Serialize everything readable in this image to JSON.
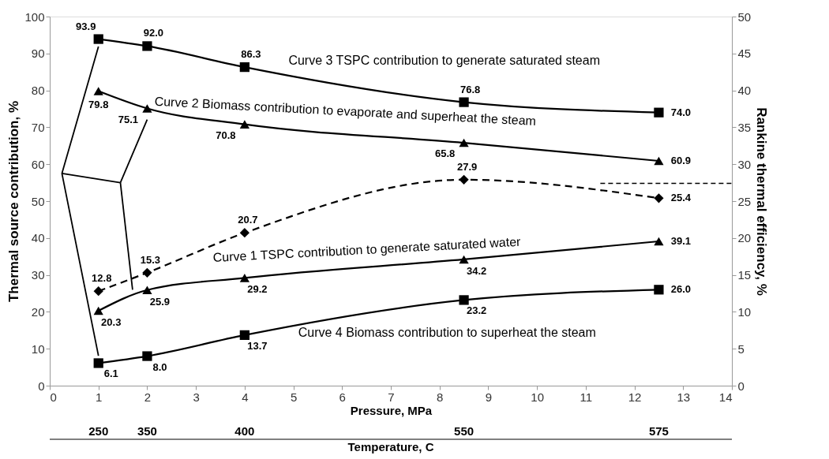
{
  "chart_data": {
    "type": "line",
    "xlabel": "Pressure, MPa",
    "ylabel": "Thermal source contribution, %",
    "y2label": "Rankine thermal efficiency, %",
    "x": [
      1,
      2,
      4,
      8.5,
      12.5
    ],
    "xlim": [
      0,
      14
    ],
    "xticks": [
      0,
      1,
      2,
      3,
      4,
      5,
      6,
      7,
      8,
      9,
      10,
      11,
      12,
      13,
      14
    ],
    "ylim": [
      0,
      100
    ],
    "yticks": [
      0,
      10,
      20,
      30,
      40,
      50,
      60,
      70,
      80,
      90,
      100
    ],
    "y2lim": [
      0,
      50
    ],
    "y2ticks": [
      0,
      5,
      10,
      15,
      20,
      25,
      30,
      35,
      40,
      45,
      50
    ],
    "series": [
      {
        "color": "#000000",
        "marker": "square",
        "line_style": "solid",
        "values": [
          93.9,
          92.0,
          86.3,
          76.8,
          74.0
        ],
        "value_labels": [
          "93.9",
          "92.0",
          "86.3",
          "76.8",
          "74.0"
        ]
      },
      {
        "color": "#000000",
        "marker": "triangle",
        "line_style": "solid",
        "values": [
          79.8,
          75.1,
          70.8,
          65.8,
          60.9
        ],
        "value_labels": [
          "79.8",
          "75.1",
          "70.8",
          "65.8",
          "60.9"
        ]
      },
      {
        "color": "#000000",
        "marker": "diamond",
        "line_style": "dashed",
        "axis": "y2",
        "values": [
          12.8,
          15.3,
          20.7,
          27.9,
          25.4
        ],
        "value_labels": [
          "12.8",
          "15.3",
          "20.7",
          "27.9",
          "25.4"
        ]
      },
      {
        "color": "#000000",
        "marker": "triangle",
        "line_style": "solid",
        "values": [
          20.3,
          25.9,
          29.2,
          34.2,
          39.1
        ],
        "value_labels": [
          "20.3",
          "25.9",
          "29.2",
          "34.2",
          "39.1"
        ]
      },
      {
        "color": "#000000",
        "marker": "square",
        "line_style": "solid",
        "values": [
          6.1,
          8.0,
          13.7,
          23.2,
          26.0
        ],
        "value_labels": [
          "6.1",
          "8.0",
          "13.7",
          "23.2",
          "26.0"
        ]
      }
    ],
    "annotations": [
      "Curve 3 TSPC contribution to generate saturated  steam",
      "Curve 2 Biomass contribution to evaporate and superheat the steam",
      "Curve 1 TSPC contribution to generate saturated water",
      "Curve 4 Biomass  contribution to superheat the steam",
      "250",
      "350",
      "400",
      "550",
      "575",
      "Temperature, C"
    ],
    "grid": false
  }
}
